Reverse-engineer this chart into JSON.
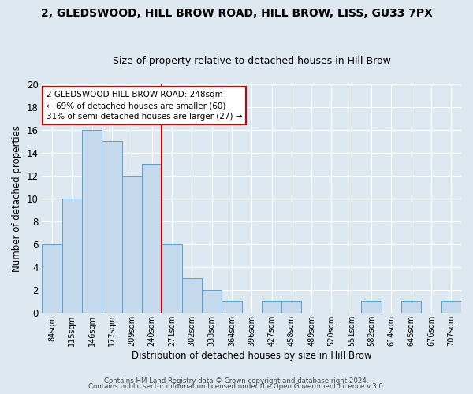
{
  "title": "2, GLEDSWOOD, HILL BROW ROAD, HILL BROW, LISS, GU33 7PX",
  "subtitle": "Size of property relative to detached houses in Hill Brow",
  "xlabel": "Distribution of detached houses by size in Hill Brow",
  "ylabel": "Number of detached properties",
  "bin_labels": [
    "84sqm",
    "115sqm",
    "146sqm",
    "177sqm",
    "209sqm",
    "240sqm",
    "271sqm",
    "302sqm",
    "333sqm",
    "364sqm",
    "396sqm",
    "427sqm",
    "458sqm",
    "489sqm",
    "520sqm",
    "551sqm",
    "582sqm",
    "614sqm",
    "645sqm",
    "676sqm",
    "707sqm"
  ],
  "bar_values": [
    6,
    10,
    16,
    15,
    12,
    13,
    6,
    3,
    2,
    1,
    0,
    1,
    1,
    0,
    0,
    0,
    1,
    0,
    1,
    0,
    1
  ],
  "bar_color": "#c5d9ed",
  "bar_edge_color": "#5a9fd4",
  "vline_x": 5.5,
  "vline_color": "#cc0000",
  "annotation_line1": "2 GLEDSWOOD HILL BROW ROAD: 248sqm",
  "annotation_line2": "← 69% of detached houses are smaller (60)",
  "annotation_line3": "31% of semi-detached houses are larger (27) →",
  "annotation_box_color": "#ffffff",
  "annotation_box_edge": "#cc0000",
  "ylim": [
    0,
    20
  ],
  "yticks": [
    0,
    2,
    4,
    6,
    8,
    10,
    12,
    14,
    16,
    18,
    20
  ],
  "footer1": "Contains HM Land Registry data © Crown copyright and database right 2024.",
  "footer2": "Contains public sector information licensed under the Open Government Licence v.3.0.",
  "background_color": "#dde8f0",
  "plot_background": "#dde8f0",
  "grid_color": "#ffffff",
  "title_fontsize": 10,
  "subtitle_fontsize": 9
}
